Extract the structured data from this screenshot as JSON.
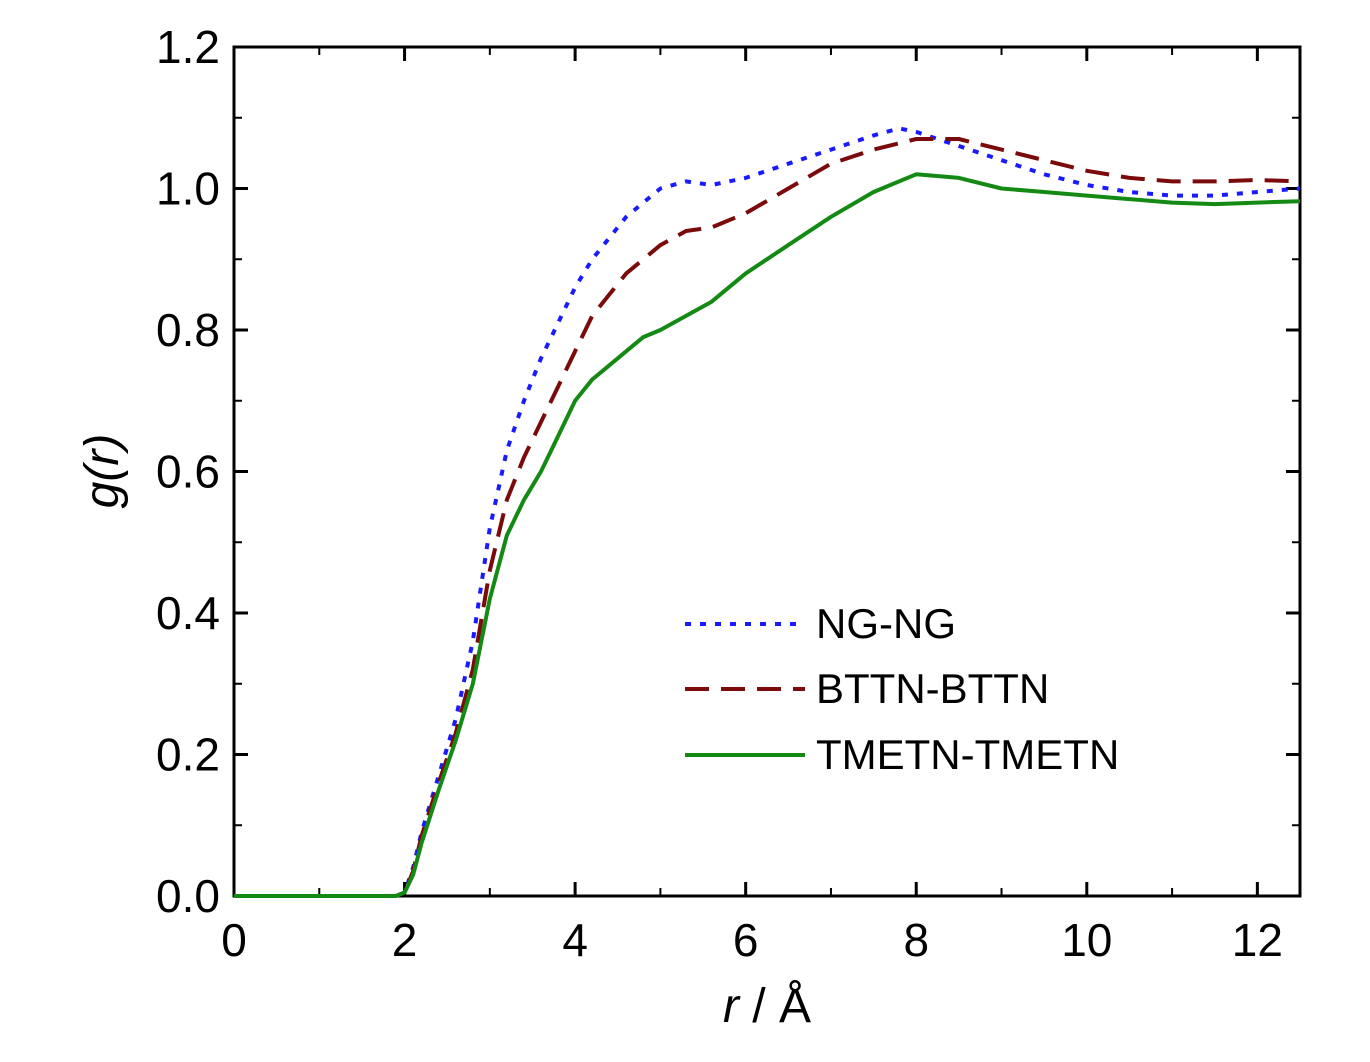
{
  "chart_data": {
    "type": "line",
    "title": "",
    "xlabel_italic": "r",
    "xlabel_rest": " / Å",
    "ylabel_italic": "g(r)",
    "xlim": [
      0,
      12.5
    ],
    "ylim": [
      0,
      1.2
    ],
    "x_ticks": [
      0,
      2,
      4,
      6,
      8,
      10,
      12
    ],
    "x_tick_labels": [
      "0",
      "2",
      "4",
      "6",
      "8",
      "10",
      "12"
    ],
    "y_ticks": [
      0.0,
      0.2,
      0.4,
      0.6,
      0.8,
      1.0,
      1.2
    ],
    "y_tick_labels": [
      "0.0",
      "0.2",
      "0.4",
      "0.6",
      "0.8",
      "1.0",
      "1.2"
    ],
    "grid": false,
    "legend_position": "bottom-center",
    "series": [
      {
        "name": "NG-NG",
        "color": "#1a1aff",
        "style": "dotted",
        "x": [
          0,
          1.9,
          2.0,
          2.1,
          2.2,
          2.4,
          2.6,
          2.8,
          3.0,
          3.2,
          3.4,
          3.6,
          3.8,
          4.0,
          4.2,
          4.4,
          4.6,
          4.8,
          5.0,
          5.3,
          5.6,
          6.0,
          6.5,
          7.0,
          7.5,
          7.8,
          8.0,
          8.5,
          9.0,
          9.5,
          10.0,
          10.5,
          11.0,
          11.5,
          12.0,
          12.5
        ],
        "y": [
          0,
          0,
          0.005,
          0.04,
          0.09,
          0.17,
          0.25,
          0.36,
          0.52,
          0.63,
          0.7,
          0.76,
          0.81,
          0.86,
          0.9,
          0.93,
          0.96,
          0.98,
          1.0,
          1.01,
          1.005,
          1.015,
          1.035,
          1.055,
          1.075,
          1.085,
          1.08,
          1.06,
          1.04,
          1.02,
          1.005,
          0.995,
          0.99,
          0.99,
          0.995,
          1.0
        ]
      },
      {
        "name": "BTTN-BTTN",
        "color": "#7b0a0a",
        "style": "dashed",
        "x": [
          0,
          1.9,
          2.0,
          2.1,
          2.2,
          2.4,
          2.6,
          2.8,
          3.0,
          3.2,
          3.4,
          3.6,
          3.8,
          4.0,
          4.2,
          4.4,
          4.6,
          4.8,
          5.0,
          5.3,
          5.6,
          6.0,
          6.5,
          7.0,
          7.5,
          8.0,
          8.5,
          9.0,
          9.5,
          10.0,
          10.5,
          11.0,
          11.5,
          12.0,
          12.5
        ],
        "y": [
          0,
          0,
          0.005,
          0.035,
          0.085,
          0.16,
          0.23,
          0.32,
          0.46,
          0.56,
          0.62,
          0.67,
          0.72,
          0.77,
          0.82,
          0.85,
          0.88,
          0.9,
          0.92,
          0.94,
          0.945,
          0.965,
          1.0,
          1.035,
          1.055,
          1.07,
          1.07,
          1.055,
          1.04,
          1.025,
          1.015,
          1.01,
          1.01,
          1.012,
          1.01
        ]
      },
      {
        "name": "TMETN-TMETN",
        "color": "#148a14",
        "style": "solid",
        "x": [
          0,
          1.9,
          2.0,
          2.1,
          2.2,
          2.4,
          2.6,
          2.8,
          3.0,
          3.2,
          3.4,
          3.6,
          3.8,
          4.0,
          4.2,
          4.4,
          4.6,
          4.8,
          5.0,
          5.3,
          5.6,
          6.0,
          6.5,
          7.0,
          7.5,
          8.0,
          8.5,
          9.0,
          9.5,
          10.0,
          10.5,
          11.0,
          11.5,
          12.0,
          12.5
        ],
        "y": [
          0,
          0,
          0.005,
          0.03,
          0.075,
          0.15,
          0.22,
          0.3,
          0.42,
          0.51,
          0.56,
          0.6,
          0.65,
          0.7,
          0.73,
          0.75,
          0.77,
          0.79,
          0.8,
          0.82,
          0.84,
          0.88,
          0.92,
          0.96,
          0.995,
          1.02,
          1.015,
          1.0,
          0.995,
          0.99,
          0.985,
          0.98,
          0.978,
          0.98,
          0.982
        ]
      }
    ]
  }
}
